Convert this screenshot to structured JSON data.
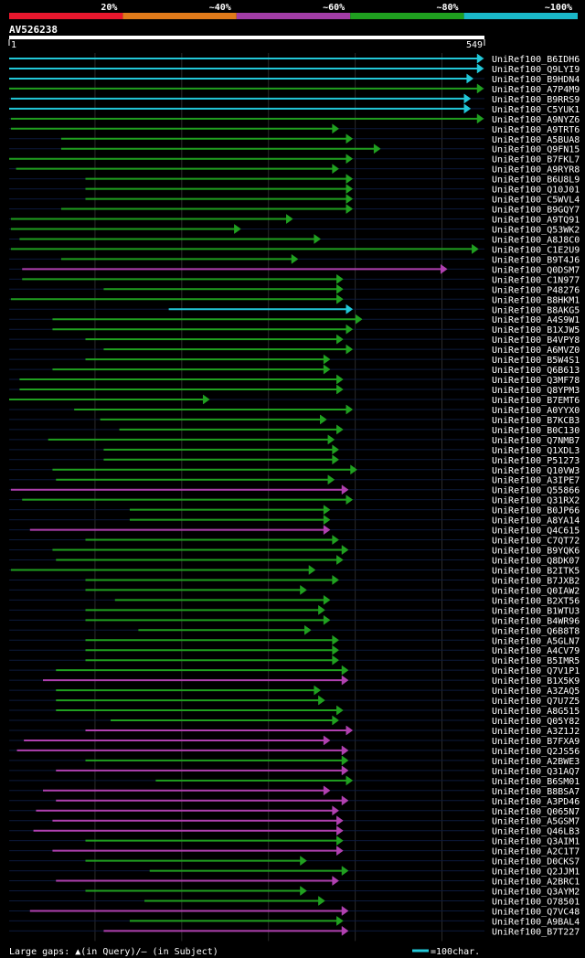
{
  "legend_scale": {
    "labels": [
      "20%",
      "~40%",
      "~60%",
      "~80%",
      "~100%"
    ],
    "colors": [
      "#e8172d",
      "#e07a1a",
      "#a23da6",
      "#1fa01f",
      "#1ab8c8"
    ]
  },
  "query": {
    "name": "AV526238",
    "start_label": "1",
    "end_label": "549",
    "length": 549
  },
  "footer": {
    "gap_text": "Large gaps: ▲(in Query)/— (in Subject)",
    "scale_text": "=100char."
  },
  "chart_data": {
    "type": "alignment",
    "title": "AV526238",
    "x_range": [
      1,
      549
    ],
    "series_colors": {
      "cyan": "#22c8d8",
      "green": "#20a020",
      "magenta": "#b040b0"
    },
    "hits": [
      {
        "name": "UniRef100_B6IDH6",
        "start": 1,
        "end": 548,
        "color": "cyan"
      },
      {
        "name": "UniRef100_Q9LYI9",
        "start": 1,
        "end": 548,
        "color": "cyan"
      },
      {
        "name": "UniRef100_B9HDN4",
        "start": 1,
        "end": 536,
        "color": "cyan"
      },
      {
        "name": "UniRef100_A7P4M9",
        "start": 1,
        "end": 548,
        "color": "green"
      },
      {
        "name": "UniRef100_B9RRS9",
        "start": 3,
        "end": 533,
        "color": "cyan"
      },
      {
        "name": "UniRef100_C5YUK1",
        "start": 1,
        "end": 533,
        "color": "cyan"
      },
      {
        "name": "UniRef100_A9NYZ6",
        "start": 3,
        "end": 548,
        "color": "green"
      },
      {
        "name": "UniRef100_A9TRT6",
        "start": 3,
        "end": 381,
        "color": "green"
      },
      {
        "name": "UniRef100_A5BUA8",
        "start": 61,
        "end": 397,
        "color": "green"
      },
      {
        "name": "UniRef100_Q9FN15",
        "start": 61,
        "end": 429,
        "color": "green"
      },
      {
        "name": "UniRef100_B7FKL7",
        "start": 1,
        "end": 397,
        "color": "green"
      },
      {
        "name": "UniRef100_A9RYR8",
        "start": 9,
        "end": 381,
        "color": "green"
      },
      {
        "name": "UniRef100_B6U8L9",
        "start": 89,
        "end": 397,
        "color": "green"
      },
      {
        "name": "UniRef100_Q10J01",
        "start": 89,
        "end": 397,
        "color": "green"
      },
      {
        "name": "UniRef100_C5WVL4",
        "start": 89,
        "end": 397,
        "color": "green"
      },
      {
        "name": "UniRef100_B9GQY7",
        "start": 61,
        "end": 397,
        "color": "green"
      },
      {
        "name": "UniRef100_A9TQ91",
        "start": 3,
        "end": 328,
        "color": "green"
      },
      {
        "name": "UniRef100_Q53WK2",
        "start": 3,
        "end": 268,
        "color": "green"
      },
      {
        "name": "UniRef100_A8J8C0",
        "start": 13,
        "end": 360,
        "color": "green"
      },
      {
        "name": "UniRef100_C1E2U9",
        "start": 3,
        "end": 542,
        "color": "green"
      },
      {
        "name": "UniRef100_B9T4J6",
        "start": 61,
        "end": 334,
        "color": "green"
      },
      {
        "name": "UniRef100_Q0DSM7",
        "start": 16,
        "end": 506,
        "color": "magenta"
      },
      {
        "name": "UniRef100_C1N977",
        "start": 16,
        "end": 386,
        "color": "green"
      },
      {
        "name": "UniRef100_P48276",
        "start": 110,
        "end": 386,
        "color": "green"
      },
      {
        "name": "UniRef100_B8HKM1",
        "start": 3,
        "end": 386,
        "color": "green"
      },
      {
        "name": "UniRef100_B8AKG5",
        "start": 185,
        "end": 397,
        "color": "cyan"
      },
      {
        "name": "UniRef100_A4S9W1",
        "start": 51,
        "end": 408,
        "color": "green"
      },
      {
        "name": "UniRef100_B1XJW5",
        "start": 51,
        "end": 397,
        "color": "green"
      },
      {
        "name": "UniRef100_B4VPY8",
        "start": 89,
        "end": 386,
        "color": "green"
      },
      {
        "name": "UniRef100_A6MVZ0",
        "start": 110,
        "end": 397,
        "color": "green"
      },
      {
        "name": "UniRef100_B5W4S1",
        "start": 89,
        "end": 371,
        "color": "green"
      },
      {
        "name": "UniRef100_Q6B613",
        "start": 51,
        "end": 371,
        "color": "green"
      },
      {
        "name": "UniRef100_Q3MF78",
        "start": 13,
        "end": 386,
        "color": "green"
      },
      {
        "name": "UniRef100_Q8YPM3",
        "start": 13,
        "end": 386,
        "color": "green"
      },
      {
        "name": "UniRef100_B7EMT6",
        "start": 1,
        "end": 232,
        "color": "green"
      },
      {
        "name": "UniRef100_A0YYX0",
        "start": 76,
        "end": 397,
        "color": "green"
      },
      {
        "name": "UniRef100_B7KCB3",
        "start": 106,
        "end": 367,
        "color": "green"
      },
      {
        "name": "UniRef100_B0C130",
        "start": 128,
        "end": 386,
        "color": "green"
      },
      {
        "name": "UniRef100_Q7NMB7",
        "start": 46,
        "end": 376,
        "color": "green"
      },
      {
        "name": "UniRef100_Q1XDL3",
        "start": 110,
        "end": 381,
        "color": "green"
      },
      {
        "name": "UniRef100_P51273",
        "start": 110,
        "end": 381,
        "color": "green"
      },
      {
        "name": "UniRef100_Q10VW3",
        "start": 51,
        "end": 402,
        "color": "green"
      },
      {
        "name": "UniRef100_A3IPE7",
        "start": 55,
        "end": 376,
        "color": "green"
      },
      {
        "name": "UniRef100_Q55866",
        "start": 3,
        "end": 392,
        "color": "magenta"
      },
      {
        "name": "UniRef100_Q31RX2",
        "start": 16,
        "end": 397,
        "color": "green"
      },
      {
        "name": "UniRef100_B0JP66",
        "start": 140,
        "end": 371,
        "color": "green"
      },
      {
        "name": "UniRef100_A8YA14",
        "start": 140,
        "end": 371,
        "color": "green"
      },
      {
        "name": "UniRef100_Q4C615",
        "start": 25,
        "end": 371,
        "color": "magenta"
      },
      {
        "name": "UniRef100_C7QT72",
        "start": 89,
        "end": 381,
        "color": "green"
      },
      {
        "name": "UniRef100_B9YQK6",
        "start": 51,
        "end": 392,
        "color": "green"
      },
      {
        "name": "UniRef100_Q8DK07",
        "start": 55,
        "end": 386,
        "color": "green"
      },
      {
        "name": "UniRef100_B2ITK5",
        "start": 3,
        "end": 354,
        "color": "green"
      },
      {
        "name": "UniRef100_B7JXB2",
        "start": 89,
        "end": 381,
        "color": "green"
      },
      {
        "name": "UniRef100_Q0IAW2",
        "start": 89,
        "end": 344,
        "color": "green"
      },
      {
        "name": "UniRef100_B2XT56",
        "start": 123,
        "end": 371,
        "color": "green"
      },
      {
        "name": "UniRef100_B1WTU3",
        "start": 89,
        "end": 365,
        "color": "green"
      },
      {
        "name": "UniRef100_B4WR96",
        "start": 89,
        "end": 371,
        "color": "green"
      },
      {
        "name": "UniRef100_Q6B8T8",
        "start": 150,
        "end": 349,
        "color": "green"
      },
      {
        "name": "UniRef100_A5GLN7",
        "start": 89,
        "end": 381,
        "color": "green"
      },
      {
        "name": "UniRef100_A4CV79",
        "start": 89,
        "end": 381,
        "color": "green"
      },
      {
        "name": "UniRef100_B5IMR5",
        "start": 89,
        "end": 381,
        "color": "green"
      },
      {
        "name": "UniRef100_Q7V1P1",
        "start": 55,
        "end": 392,
        "color": "green"
      },
      {
        "name": "UniRef100_B1X5K9",
        "start": 40,
        "end": 392,
        "color": "magenta"
      },
      {
        "name": "UniRef100_A3ZAQ5",
        "start": 55,
        "end": 360,
        "color": "green"
      },
      {
        "name": "UniRef100_Q7U7Z5",
        "start": 55,
        "end": 365,
        "color": "green"
      },
      {
        "name": "UniRef100_A8G515",
        "start": 55,
        "end": 386,
        "color": "green"
      },
      {
        "name": "UniRef100_Q05Y82",
        "start": 118,
        "end": 381,
        "color": "green"
      },
      {
        "name": "UniRef100_A3Z1J2",
        "start": 89,
        "end": 397,
        "color": "magenta"
      },
      {
        "name": "UniRef100_B7FXA9",
        "start": 18,
        "end": 371,
        "color": "magenta"
      },
      {
        "name": "UniRef100_Q2JS56",
        "start": 10,
        "end": 392,
        "color": "magenta"
      },
      {
        "name": "UniRef100_A2BWE3",
        "start": 89,
        "end": 392,
        "color": "green"
      },
      {
        "name": "UniRef100_Q31AQ7",
        "start": 55,
        "end": 392,
        "color": "magenta"
      },
      {
        "name": "UniRef100_B6SM01",
        "start": 170,
        "end": 397,
        "color": "green"
      },
      {
        "name": "UniRef100_B8BSA7",
        "start": 40,
        "end": 371,
        "color": "magenta"
      },
      {
        "name": "UniRef100_A3PD46",
        "start": 55,
        "end": 392,
        "color": "magenta"
      },
      {
        "name": "UniRef100_Q065N7",
        "start": 32,
        "end": 381,
        "color": "magenta"
      },
      {
        "name": "UniRef100_A5GSM7",
        "start": 51,
        "end": 386,
        "color": "magenta"
      },
      {
        "name": "UniRef100_Q46LB3",
        "start": 29,
        "end": 386,
        "color": "magenta"
      },
      {
        "name": "UniRef100_Q3AIM1",
        "start": 89,
        "end": 386,
        "color": "green"
      },
      {
        "name": "UniRef100_A2C1T7",
        "start": 51,
        "end": 386,
        "color": "magenta"
      },
      {
        "name": "UniRef100_D0CKS7",
        "start": 89,
        "end": 344,
        "color": "green"
      },
      {
        "name": "UniRef100_Q2JJM1",
        "start": 163,
        "end": 392,
        "color": "green"
      },
      {
        "name": "UniRef100_A2BRC1",
        "start": 55,
        "end": 381,
        "color": "magenta"
      },
      {
        "name": "UniRef100_Q3AYM2",
        "start": 89,
        "end": 344,
        "color": "green"
      },
      {
        "name": "UniRef100_O78501",
        "start": 157,
        "end": 365,
        "color": "green"
      },
      {
        "name": "UniRef100_Q7VC48",
        "start": 25,
        "end": 392,
        "color": "magenta"
      },
      {
        "name": "UniRef100_A9BAL4",
        "start": 140,
        "end": 386,
        "color": "green"
      },
      {
        "name": "UniRef100_B7T227",
        "start": 110,
        "end": 392,
        "color": "magenta"
      }
    ]
  }
}
